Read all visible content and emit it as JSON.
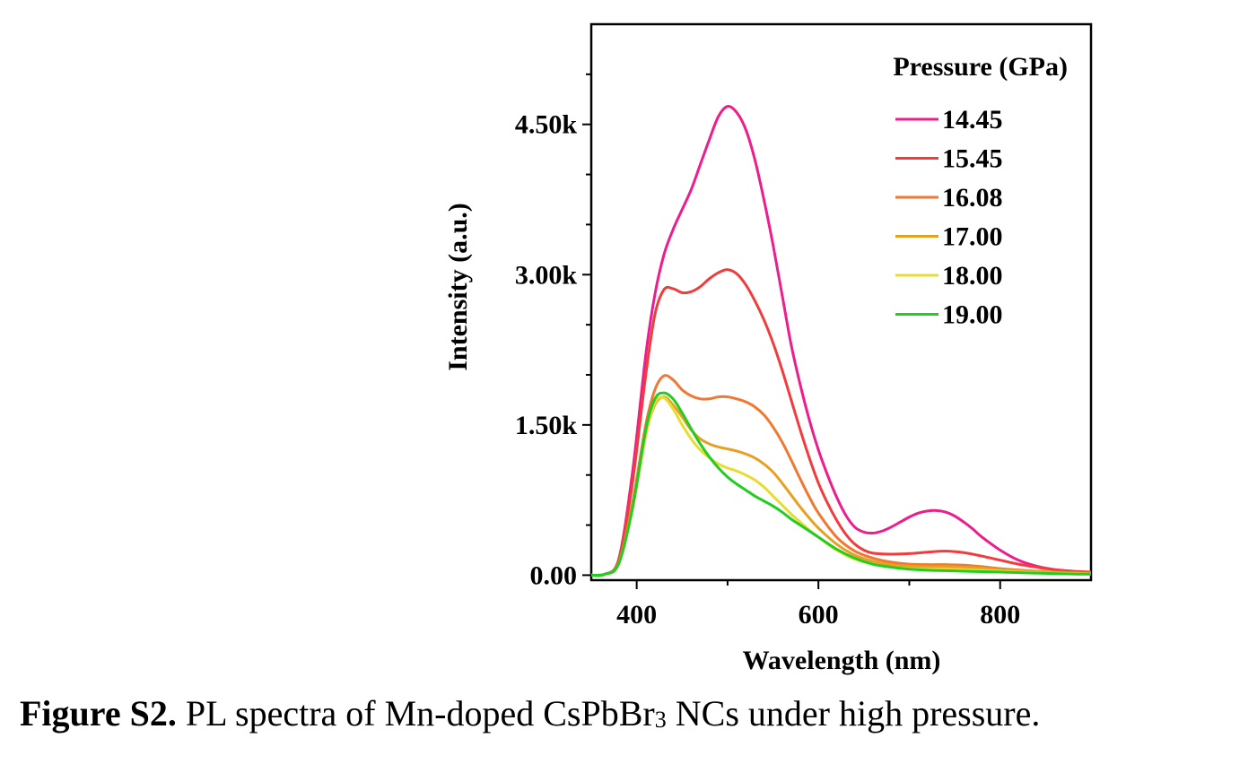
{
  "chart_data": {
    "type": "line",
    "xlabel": "Wavelength (nm)",
    "ylabel": "Intensity (a.u.)",
    "xlim": [
      350,
      900
    ],
    "ylim": [
      -50,
      5500
    ],
    "xticks": [
      400,
      600,
      800
    ],
    "xtick_labels": [
      "400",
      "600",
      "800"
    ],
    "yticks": [
      0,
      1500,
      3000,
      4500
    ],
    "ytick_labels": [
      "0.00",
      "1.50k",
      "3.00k",
      "4.50k"
    ],
    "legend_title": "Pressure (GPa)",
    "legend_position": "top-right",
    "grid": false,
    "series": [
      {
        "name": "14.45",
        "color": "#ee1c8c",
        "x": [
          350,
          365,
          380,
          395,
          410,
          420,
          430,
          440,
          450,
          460,
          470,
          480,
          490,
          500,
          510,
          520,
          530,
          540,
          550,
          560,
          570,
          580,
          590,
          600,
          610,
          620,
          630,
          640,
          650,
          660,
          670,
          680,
          690,
          700,
          710,
          720,
          730,
          740,
          750,
          760,
          770,
          780,
          800,
          820,
          840,
          860,
          880,
          900
        ],
        "y": [
          0,
          10,
          150,
          1000,
          2200,
          2800,
          3200,
          3450,
          3650,
          3850,
          4100,
          4350,
          4580,
          4680,
          4620,
          4450,
          4150,
          3750,
          3300,
          2800,
          2300,
          1900,
          1550,
          1250,
          1000,
          780,
          600,
          480,
          430,
          420,
          440,
          480,
          530,
          580,
          620,
          640,
          645,
          630,
          590,
          530,
          460,
          380,
          250,
          150,
          90,
          55,
          35,
          25
        ]
      },
      {
        "name": "15.45",
        "color": "#f03c3c",
        "x": [
          350,
          365,
          380,
          395,
          410,
          420,
          430,
          440,
          450,
          460,
          470,
          480,
          490,
          500,
          510,
          520,
          530,
          540,
          550,
          560,
          570,
          580,
          590,
          600,
          610,
          620,
          630,
          640,
          650,
          660,
          680,
          700,
          720,
          740,
          760,
          780,
          800,
          820,
          840,
          860,
          880,
          900
        ],
        "y": [
          0,
          10,
          150,
          900,
          2000,
          2600,
          2850,
          2860,
          2820,
          2830,
          2880,
          2960,
          3020,
          3050,
          3010,
          2900,
          2740,
          2550,
          2320,
          2050,
          1750,
          1450,
          1170,
          920,
          720,
          550,
          410,
          310,
          250,
          220,
          210,
          215,
          230,
          240,
          225,
          190,
          150,
          110,
          80,
          55,
          40,
          30
        ]
      },
      {
        "name": "16.08",
        "color": "#f07830",
        "x": [
          350,
          365,
          380,
          395,
          410,
          420,
          430,
          440,
          450,
          460,
          470,
          480,
          490,
          500,
          510,
          520,
          530,
          540,
          550,
          560,
          570,
          580,
          590,
          600,
          620,
          640,
          660,
          680,
          700,
          720,
          740,
          760,
          780,
          800,
          840,
          880,
          900
        ],
        "y": [
          0,
          10,
          120,
          700,
          1500,
          1850,
          1990,
          1950,
          1850,
          1790,
          1760,
          1760,
          1780,
          1780,
          1760,
          1730,
          1680,
          1600,
          1480,
          1330,
          1150,
          960,
          780,
          620,
          380,
          240,
          170,
          130,
          110,
          105,
          105,
          100,
          85,
          65,
          40,
          25,
          20
        ]
      },
      {
        "name": "17.00",
        "color": "#e8a020",
        "x": [
          350,
          365,
          380,
          395,
          410,
          420,
          430,
          440,
          450,
          460,
          470,
          480,
          490,
          500,
          510,
          520,
          530,
          540,
          550,
          560,
          570,
          580,
          590,
          600,
          620,
          640,
          660,
          680,
          700,
          720,
          740,
          760,
          780,
          800,
          840,
          880,
          900
        ],
        "y": [
          0,
          10,
          110,
          650,
          1400,
          1700,
          1780,
          1700,
          1580,
          1450,
          1360,
          1310,
          1280,
          1260,
          1240,
          1210,
          1170,
          1110,
          1030,
          920,
          800,
          680,
          570,
          470,
          310,
          200,
          140,
          105,
          90,
          85,
          85,
          80,
          70,
          55,
          35,
          20,
          15
        ]
      },
      {
        "name": "18.00",
        "color": "#e8dc30",
        "x": [
          350,
          365,
          380,
          395,
          410,
          420,
          430,
          440,
          450,
          460,
          470,
          480,
          490,
          500,
          510,
          520,
          530,
          540,
          550,
          560,
          570,
          580,
          590,
          600,
          620,
          640,
          660,
          680,
          700,
          720,
          740,
          760,
          780,
          800,
          840,
          880,
          900
        ],
        "y": [
          0,
          10,
          110,
          650,
          1400,
          1720,
          1770,
          1660,
          1500,
          1360,
          1250,
          1170,
          1110,
          1070,
          1040,
          1000,
          950,
          880,
          790,
          700,
          610,
          530,
          450,
          380,
          250,
          160,
          110,
          80,
          65,
          60,
          60,
          55,
          48,
          40,
          25,
          15,
          12
        ]
      },
      {
        "name": "19.00",
        "color": "#22cc22",
        "x": [
          350,
          365,
          380,
          395,
          410,
          420,
          430,
          440,
          450,
          460,
          470,
          480,
          490,
          500,
          510,
          520,
          530,
          540,
          550,
          560,
          570,
          580,
          590,
          600,
          620,
          640,
          660,
          680,
          700,
          720,
          740,
          760,
          780,
          800,
          840,
          880,
          900
        ],
        "y": [
          0,
          10,
          110,
          650,
          1450,
          1760,
          1820,
          1760,
          1620,
          1460,
          1310,
          1180,
          1070,
          980,
          910,
          850,
          790,
          740,
          690,
          630,
          560,
          500,
          440,
          380,
          260,
          170,
          110,
          80,
          60,
          50,
          45,
          40,
          35,
          30,
          20,
          12,
          10
        ]
      }
    ]
  },
  "caption": {
    "label": "Figure S2.",
    "text_before_sub": " PL spectra of Mn-doped CsPbBr",
    "subscript": "3",
    "text_after_sub": " NCs under high pressure."
  }
}
